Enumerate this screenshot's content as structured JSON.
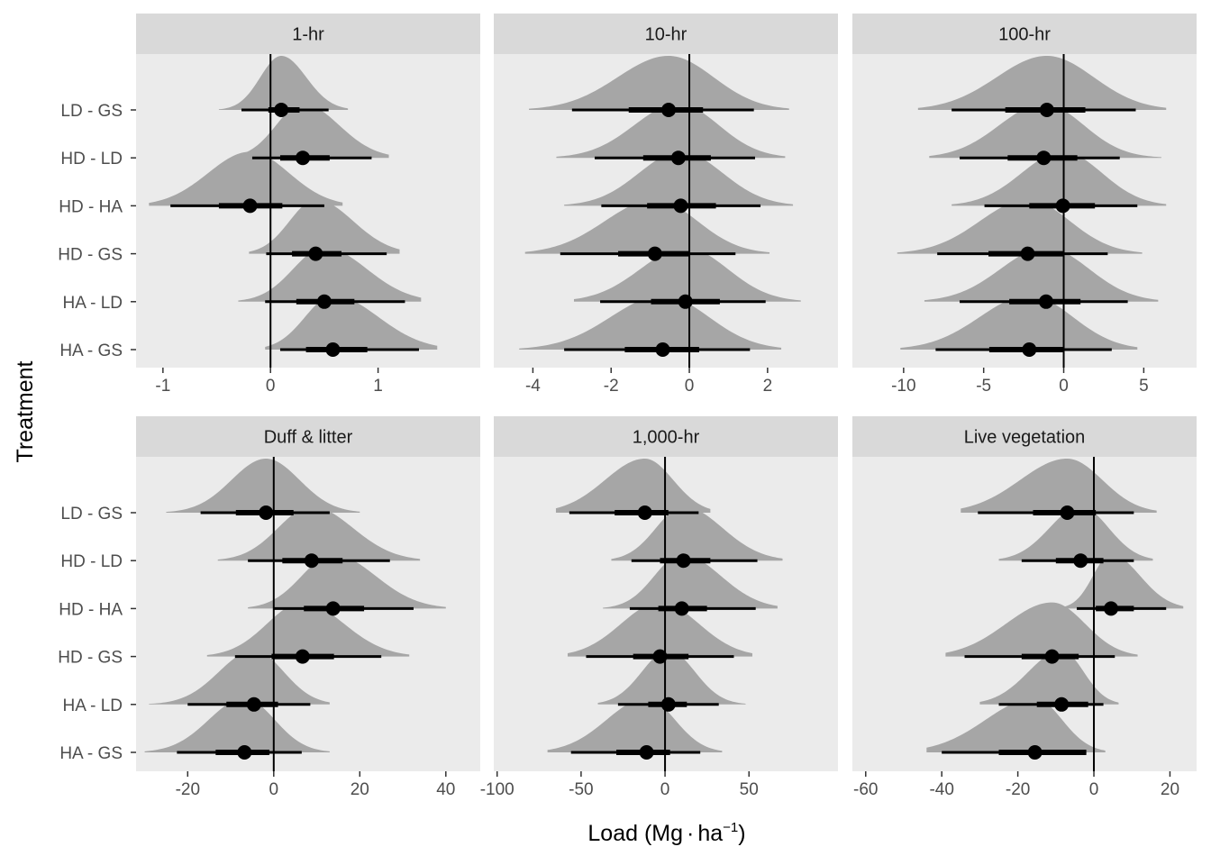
{
  "colors": {
    "panel_bg": "#ebebeb",
    "strip_bg": "#d9d9d9",
    "density_fill": "#a6a6a6",
    "interval": "#000000",
    "zero_line": "#000000",
    "page_bg": "#ffffff"
  },
  "chart_data": {
    "type": "halfeye",
    "ylabel": "Treatment",
    "xlabel_main": "Load (Mg",
    "xlabel_dot": "·",
    "xlabel_unit": "ha",
    "xlabel_sup": "−1",
    "xlabel_close": ")",
    "categories": [
      "LD - GS",
      "HD - LD",
      "HD - HA",
      "HD - GS",
      "HA - LD",
      "HA - GS"
    ],
    "intervals_shown": [
      "median",
      "66%",
      "95%"
    ],
    "panels": [
      {
        "title": "1-hr",
        "xlim": [
          -1.25,
          1.95
        ],
        "ticks": [
          -1,
          0,
          1
        ],
        "tick_labels": [
          "-1",
          "0",
          "1"
        ],
        "series": [
          {
            "name": "LD - GS",
            "median": 0.1,
            "q66": [
              -0.02,
              0.27
            ],
            "q95": [
              -0.27,
              0.54
            ],
            "range": [
              -0.48,
              0.72
            ]
          },
          {
            "name": "HD - LD",
            "median": 0.3,
            "q66": [
              0.09,
              0.55
            ],
            "q95": [
              -0.17,
              0.94
            ],
            "range": [
              -0.31,
              1.1
            ]
          },
          {
            "name": "HD - HA",
            "median": -0.19,
            "q66": [
              -0.48,
              0.11
            ],
            "q95": [
              -0.93,
              0.5
            ],
            "range": [
              -1.13,
              0.67
            ]
          },
          {
            "name": "HD - GS",
            "median": 0.42,
            "q66": [
              0.2,
              0.66
            ],
            "q95": [
              -0.04,
              1.08
            ],
            "range": [
              -0.2,
              1.2
            ]
          },
          {
            "name": "HA - LD",
            "median": 0.5,
            "q66": [
              0.24,
              0.78
            ],
            "q95": [
              -0.05,
              1.25
            ],
            "range": [
              -0.3,
              1.4
            ]
          },
          {
            "name": "HA - GS",
            "median": 0.58,
            "q66": [
              0.33,
              0.9
            ],
            "q95": [
              0.09,
              1.38
            ],
            "range": [
              -0.05,
              1.55
            ]
          }
        ]
      },
      {
        "title": "10-hr",
        "xlim": [
          -5.0,
          3.8
        ],
        "ticks": [
          -4,
          -2,
          0,
          2
        ],
        "tick_labels": [
          "-4",
          "-2",
          "0",
          "2"
        ],
        "series": [
          {
            "name": "LD - GS",
            "median": -0.53,
            "q66": [
              -1.55,
              0.35
            ],
            "q95": [
              -3.0,
              1.65
            ],
            "range": [
              -4.1,
              2.55
            ]
          },
          {
            "name": "HD - LD",
            "median": -0.28,
            "q66": [
              -1.18,
              0.55
            ],
            "q95": [
              -2.42,
              1.68
            ],
            "range": [
              -3.4,
              2.45
            ]
          },
          {
            "name": "HD - HA",
            "median": -0.22,
            "q66": [
              -1.08,
              0.68
            ],
            "q95": [
              -2.25,
              1.82
            ],
            "range": [
              -3.2,
              2.65
            ]
          },
          {
            "name": "HD - GS",
            "median": -0.88,
            "q66": [
              -1.82,
              0.02
            ],
            "q95": [
              -3.3,
              1.18
            ],
            "range": [
              -4.2,
              2.05
            ]
          },
          {
            "name": "HA - LD",
            "median": -0.1,
            "q66": [
              -0.98,
              0.78
            ],
            "q95": [
              -2.28,
              1.95
            ],
            "range": [
              -2.95,
              2.85
            ]
          },
          {
            "name": "HA - GS",
            "median": -0.68,
            "q66": [
              -1.65,
              0.25
            ],
            "q95": [
              -3.2,
              1.55
            ],
            "range": [
              -4.35,
              2.35
            ]
          }
        ]
      },
      {
        "title": "100-hr",
        "xlim": [
          -13.2,
          8.3
        ],
        "ticks": [
          -10,
          -5,
          0,
          5
        ],
        "tick_labels": [
          "-10",
          "-5",
          "0",
          "5"
        ],
        "series": [
          {
            "name": "LD - GS",
            "median": -1.05,
            "q66": [
              -3.65,
              1.35
            ],
            "q95": [
              -7.0,
              4.5
            ],
            "range": [
              -9.1,
              6.4
            ]
          },
          {
            "name": "HD - LD",
            "median": -1.25,
            "q66": [
              -3.5,
              0.85
            ],
            "q95": [
              -6.5,
              3.5
            ],
            "range": [
              -8.4,
              6.1
            ]
          },
          {
            "name": "HD - HA",
            "median": -0.05,
            "q66": [
              -2.15,
              1.95
            ],
            "q95": [
              -4.95,
              4.6
            ],
            "range": [
              -7.0,
              6.4
            ]
          },
          {
            "name": "HD - GS",
            "median": -2.25,
            "q66": [
              -4.7,
              0.0
            ],
            "q95": [
              -7.9,
              2.75
            ],
            "range": [
              -10.4,
              4.9
            ]
          },
          {
            "name": "HA - LD",
            "median": -1.1,
            "q66": [
              -3.4,
              1.05
            ],
            "q95": [
              -6.5,
              4.0
            ],
            "range": [
              -8.7,
              5.9
            ]
          },
          {
            "name": "HA - GS",
            "median": -2.15,
            "q66": [
              -4.65,
              0.05
            ],
            "q95": [
              -8.0,
              3.0
            ],
            "range": [
              -10.2,
              4.6
            ]
          }
        ]
      },
      {
        "title": "Duff & litter",
        "xlim": [
          -32.0,
          48.0
        ],
        "ticks": [
          -20,
          0,
          20,
          40
        ],
        "tick_labels": [
          "-20",
          "0",
          "20",
          "40"
        ],
        "series": [
          {
            "name": "LD - GS",
            "median": -1.8,
            "q66": [
              -8.8,
              4.6
            ],
            "q95": [
              -17.0,
              13.0
            ],
            "range": [
              -25.0,
              20.0
            ]
          },
          {
            "name": "HD - LD",
            "median": 8.8,
            "q66": [
              2.0,
              16.0
            ],
            "q95": [
              -6.0,
              27.0
            ],
            "range": [
              -13.0,
              34.0
            ]
          },
          {
            "name": "HD - HA",
            "median": 13.8,
            "q66": [
              7.0,
              21.0
            ],
            "q95": [
              0.0,
              32.5
            ],
            "range": [
              -6.0,
              40.0
            ]
          },
          {
            "name": "HD - GS",
            "median": 6.7,
            "q66": [
              -0.5,
              14.0
            ],
            "q95": [
              -9.0,
              25.0
            ],
            "range": [
              -15.5,
              31.5
            ]
          },
          {
            "name": "HA - LD",
            "median": -4.6,
            "q66": [
              -11.0,
              1.0
            ],
            "q95": [
              -20.0,
              8.5
            ],
            "range": [
              -29.0,
              13.0
            ]
          },
          {
            "name": "HA - GS",
            "median": -6.8,
            "q66": [
              -13.5,
              -1.0
            ],
            "q95": [
              -22.5,
              6.5
            ],
            "range": [
              -30.0,
              13.0
            ]
          }
        ]
      },
      {
        "title": "1,000-hr",
        "xlim": [
          -102.0,
          103.0
        ],
        "ticks": [
          -100,
          -50,
          0,
          50
        ],
        "tick_labels": [
          "-100",
          "-50",
          "0",
          "50"
        ],
        "series": [
          {
            "name": "LD - GS",
            "median": -12.0,
            "q66": [
              -30.0,
              2.0
            ],
            "q95": [
              -57.0,
              20.0
            ],
            "range": [
              -65.0,
              27.0
            ]
          },
          {
            "name": "HD - LD",
            "median": 11.0,
            "q66": [
              -3.0,
              27.0
            ],
            "q95": [
              -20.0,
              55.0
            ],
            "range": [
              -32.0,
              70.0
            ]
          },
          {
            "name": "HD - HA",
            "median": 10.0,
            "q66": [
              -4.0,
              25.0
            ],
            "q95": [
              -21.0,
              54.0
            ],
            "range": [
              -37.0,
              67.0
            ]
          },
          {
            "name": "HD - GS",
            "median": -3.0,
            "q66": [
              -19.0,
              14.0
            ],
            "q95": [
              -47.0,
              41.0
            ],
            "range": [
              -58.0,
              52.0
            ]
          },
          {
            "name": "HA - LD",
            "median": 2.0,
            "q66": [
              -10.0,
              13.0
            ],
            "q95": [
              -28.0,
              32.0
            ],
            "range": [
              -40.0,
              48.0
            ]
          },
          {
            "name": "HA - GS",
            "median": -11.0,
            "q66": [
              -29.0,
              3.0
            ],
            "q95": [
              -56.0,
              21.0
            ],
            "range": [
              -70.0,
              34.0
            ]
          }
        ]
      },
      {
        "title": "Live vegetation",
        "xlim": [
          -63.5,
          27.0
        ],
        "ticks": [
          -60,
          -40,
          -20,
          0,
          20
        ],
        "tick_labels": [
          "-60",
          "-40",
          "-20",
          "0",
          "20"
        ],
        "series": [
          {
            "name": "LD - GS",
            "median": -7.0,
            "q66": [
              -16.0,
              0.5
            ],
            "q95": [
              -30.5,
              10.5
            ],
            "range": [
              -35.0,
              16.5
            ]
          },
          {
            "name": "HD - LD",
            "median": -3.5,
            "q66": [
              -10.0,
              2.5
            ],
            "q95": [
              -19.0,
              10.5
            ],
            "range": [
              -25.0,
              15.5
            ]
          },
          {
            "name": "HD - HA",
            "median": 4.5,
            "q66": [
              0.5,
              10.5
            ],
            "q95": [
              -4.5,
              19.0
            ],
            "range": [
              -8.5,
              23.5
            ]
          },
          {
            "name": "HD - GS",
            "median": -11.0,
            "q66": [
              -19.0,
              -4.0
            ],
            "q95": [
              -34.0,
              5.5
            ],
            "range": [
              -39.0,
              11.5
            ]
          },
          {
            "name": "HA - LD",
            "median": -8.5,
            "q66": [
              -15.0,
              -1.5
            ],
            "q95": [
              -25.0,
              2.5
            ],
            "range": [
              -30.0,
              6.5
            ]
          },
          {
            "name": "HA - GS",
            "median": -15.5,
            "q66": [
              -25.0,
              -2.0
            ],
            "q95": [
              -40.0,
              -2.0
            ],
            "range": [
              -44.0,
              3.0
            ]
          }
        ]
      }
    ]
  }
}
